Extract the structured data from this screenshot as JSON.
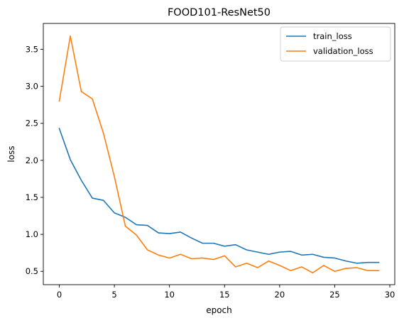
{
  "chart_data": {
    "type": "line",
    "title": "FOOD101-ResNet50",
    "xlabel": "epoch",
    "ylabel": "loss",
    "xlim": [
      -1.45,
      30.45
    ],
    "ylim": [
      0.32,
      3.85
    ],
    "x_ticks": [
      0,
      5,
      10,
      15,
      20,
      25,
      30
    ],
    "y_ticks": [
      0.5,
      1.0,
      1.5,
      2.0,
      2.5,
      3.0,
      3.5
    ],
    "x_tick_labels": [
      "0",
      "5",
      "10",
      "15",
      "20",
      "25",
      "30"
    ],
    "y_tick_labels": [
      "0.5",
      "1.0",
      "1.5",
      "2.0",
      "2.5",
      "3.0",
      "3.5"
    ],
    "grid": false,
    "legend_position": "top-right",
    "x": [
      0,
      1,
      2,
      3,
      4,
      5,
      6,
      7,
      8,
      9,
      10,
      11,
      12,
      13,
      14,
      15,
      16,
      17,
      18,
      19,
      20,
      21,
      22,
      23,
      24,
      25,
      26,
      27,
      28,
      29
    ],
    "series": [
      {
        "name": "train_loss",
        "color": "#1f77b4",
        "values": [
          2.43,
          2.01,
          1.73,
          1.49,
          1.46,
          1.29,
          1.23,
          1.13,
          1.12,
          1.02,
          1.01,
          1.03,
          0.95,
          0.88,
          0.88,
          0.84,
          0.86,
          0.79,
          0.76,
          0.73,
          0.76,
          0.77,
          0.72,
          0.73,
          0.69,
          0.68,
          0.64,
          0.61,
          0.62,
          0.62
        ]
      },
      {
        "name": "validation_loss",
        "color": "#ff7f0e",
        "values": [
          2.8,
          3.68,
          2.93,
          2.83,
          2.37,
          1.78,
          1.11,
          0.99,
          0.79,
          0.72,
          0.68,
          0.73,
          0.67,
          0.68,
          0.66,
          0.71,
          0.56,
          0.61,
          0.55,
          0.64,
          0.58,
          0.51,
          0.56,
          0.48,
          0.58,
          0.5,
          0.54,
          0.55,
          0.51,
          0.51
        ]
      }
    ]
  }
}
